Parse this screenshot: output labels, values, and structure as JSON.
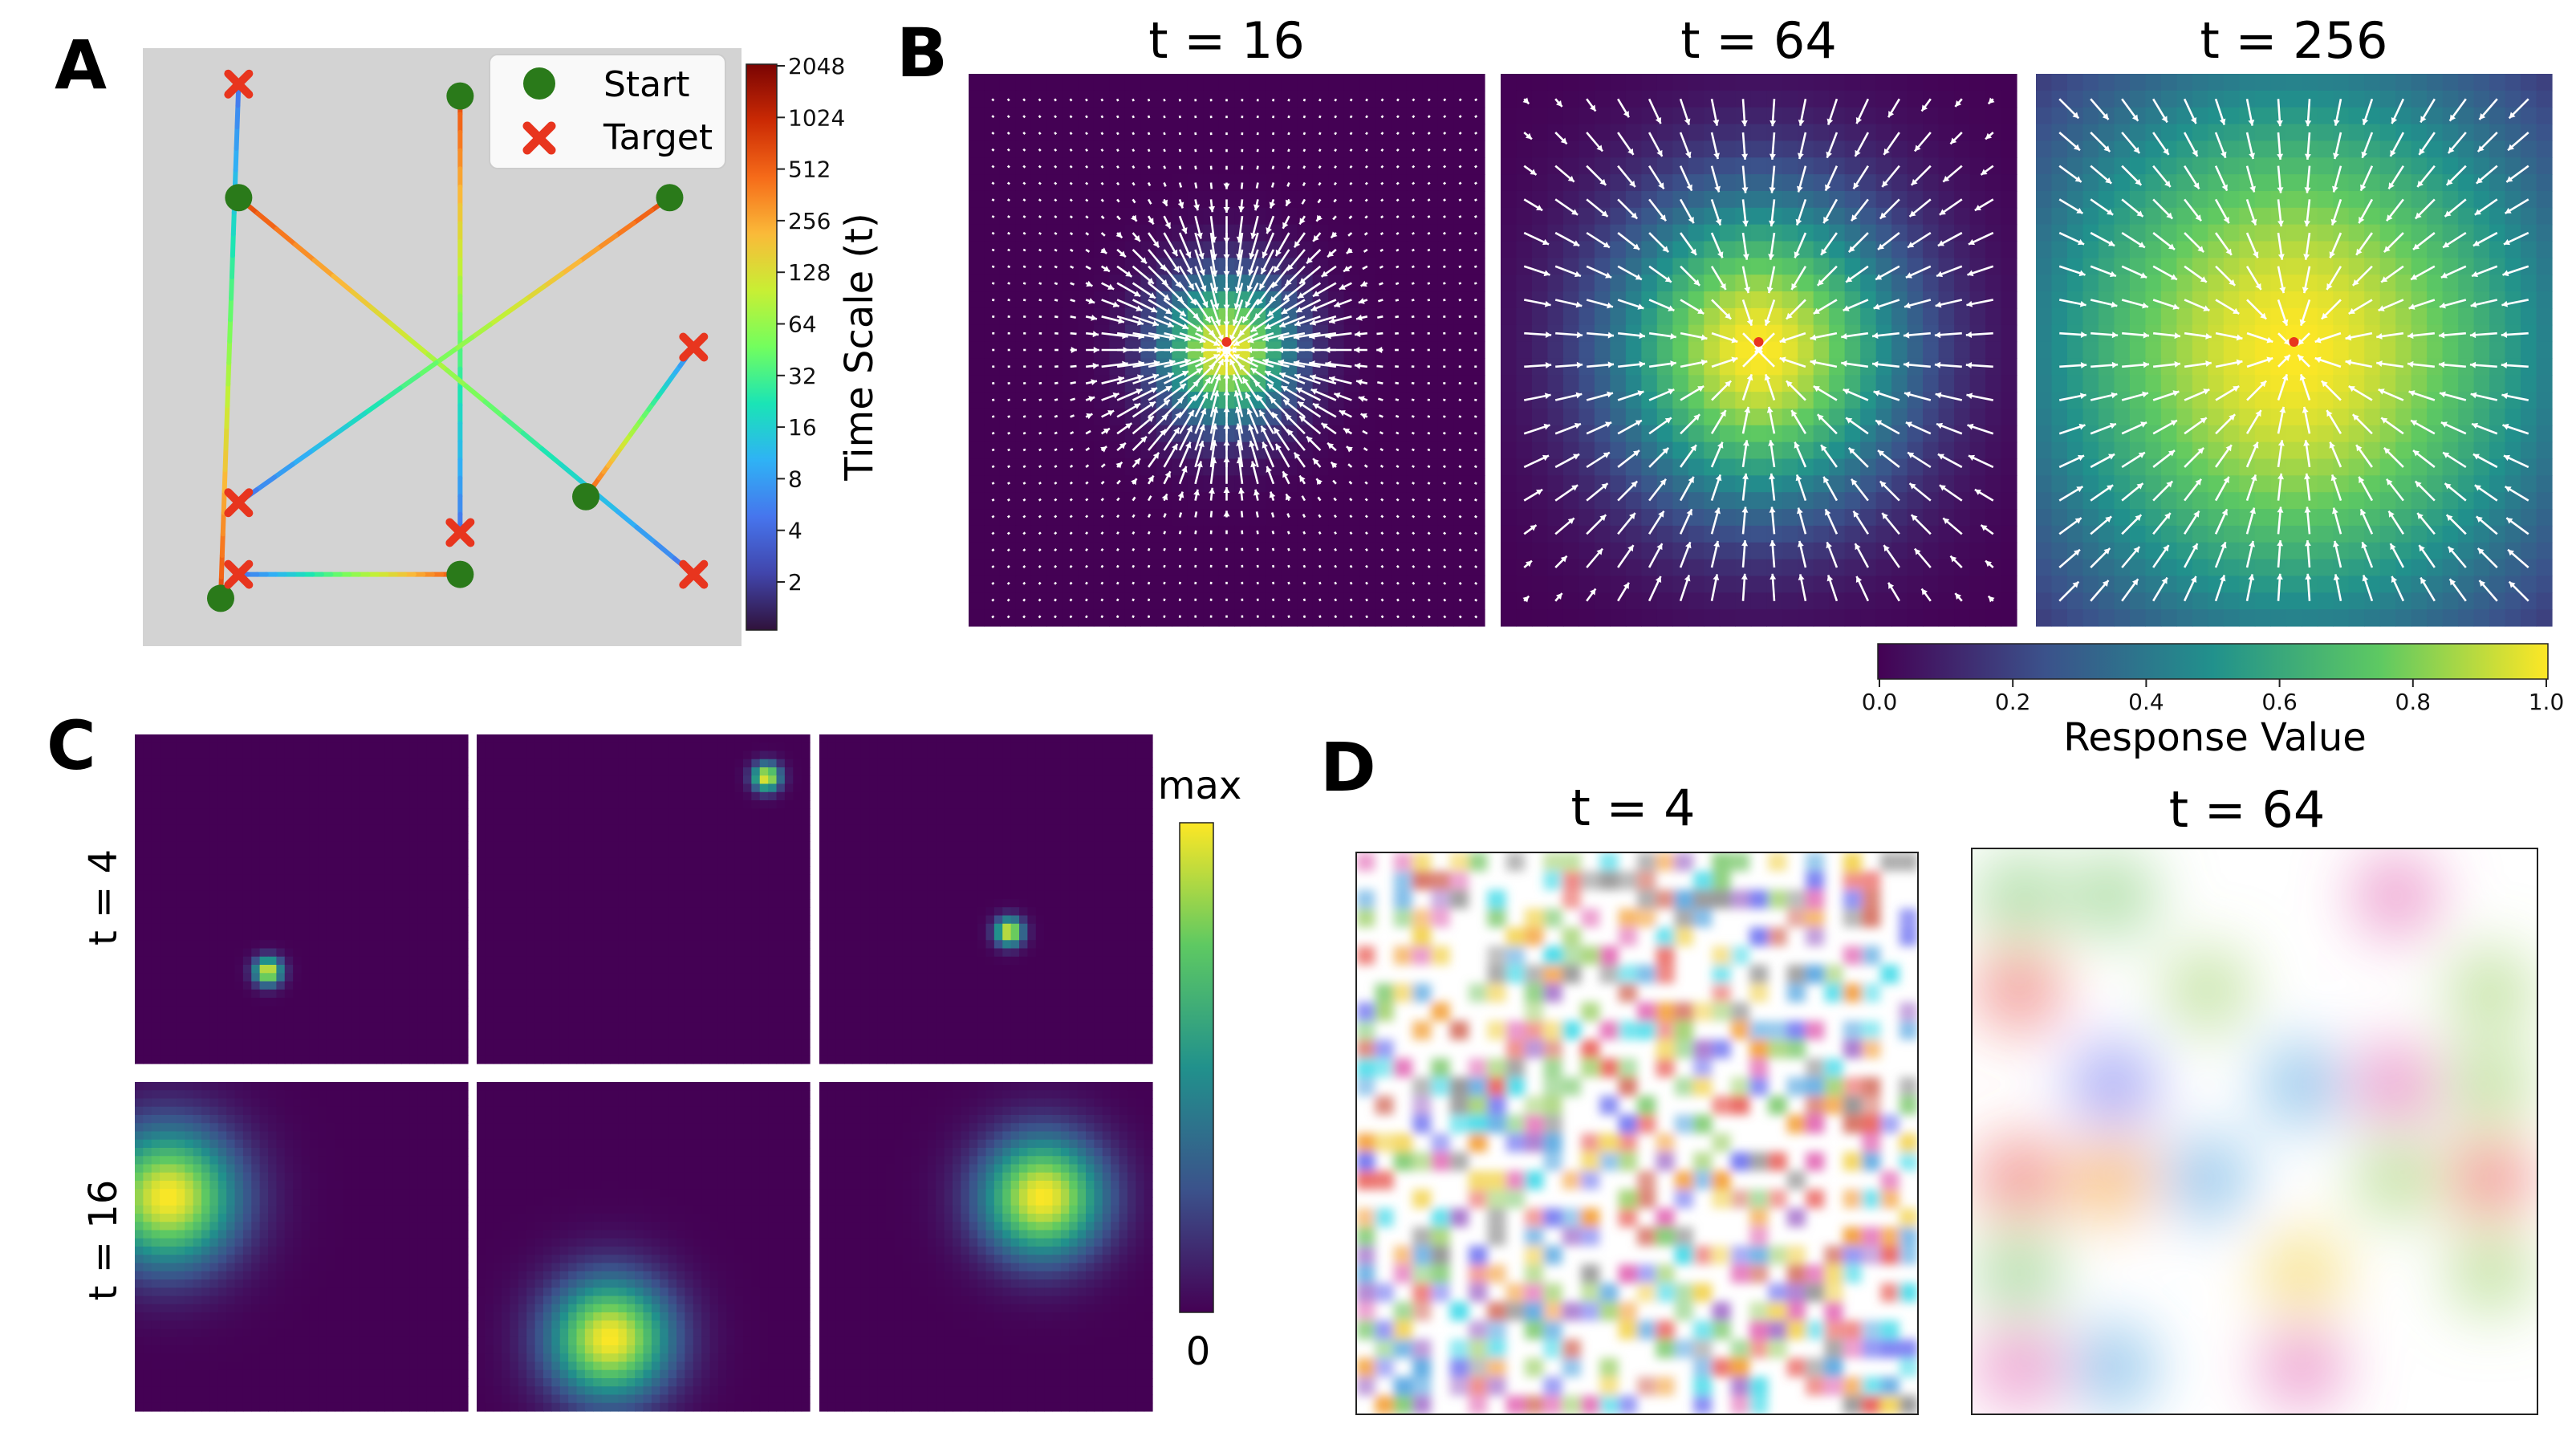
{
  "panels": {
    "A": {
      "letter": "A"
    },
    "B": {
      "letter": "B"
    },
    "C": {
      "letter": "C"
    },
    "D": {
      "letter": "D"
    }
  },
  "chart_data": [
    {
      "panel": "A",
      "type": "line",
      "legend": [
        "Start",
        "Target"
      ],
      "legend_position": "top-right",
      "colorbar": {
        "label": "Time Scale (t)",
        "ticks": [
          "2048",
          "1024",
          "512",
          "256",
          "128",
          "64",
          "32",
          "16",
          "8",
          "4",
          "2"
        ],
        "scale": "log2"
      },
      "paths": [
        {
          "start": [
            0.13,
            0.92
          ],
          "target": [
            0.16,
            0.06
          ]
        },
        {
          "start": [
            0.53,
            0.08
          ],
          "target": [
            0.53,
            0.81
          ]
        },
        {
          "start": [
            0.16,
            0.25
          ],
          "target": [
            0.92,
            0.88
          ]
        },
        {
          "start": [
            0.88,
            0.25
          ],
          "target": [
            0.16,
            0.76
          ]
        },
        {
          "start": [
            0.74,
            0.75
          ],
          "target": [
            0.92,
            0.5
          ]
        },
        {
          "start": [
            0.53,
            0.88
          ],
          "target": [
            0.16,
            0.88
          ]
        }
      ]
    },
    {
      "panel": "B",
      "type": "heatmap",
      "maps": [
        {
          "title": "t = 16",
          "sigma": 0.09
        },
        {
          "title": "t = 64",
          "sigma": 0.2
        },
        {
          "title": "t = 256",
          "sigma": 0.38
        }
      ],
      "colorbar": {
        "label": "Response Value",
        "ticks": [
          "0.0",
          "0.2",
          "0.4",
          "0.6",
          "0.8",
          "1.0"
        ],
        "range": [
          0,
          1
        ]
      }
    },
    {
      "panel": "C",
      "type": "heatmap",
      "row_labels": [
        "t = 4",
        "t = 16"
      ],
      "colorbar": {
        "top": "max",
        "bottom": "0"
      },
      "blobs": [
        [
          {
            "x": 0.4,
            "y": 0.72,
            "r": 0.05
          },
          {
            "x": 0.87,
            "y": 0.13,
            "r": 0.05
          },
          {
            "x": 0.57,
            "y": 0.6,
            "r": 0.05
          }
        ],
        [
          {
            "x": 0.1,
            "y": 0.35,
            "r": 0.25
          },
          {
            "x": 0.4,
            "y": 0.78,
            "r": 0.22
          },
          {
            "x": 0.67,
            "y": 0.35,
            "r": 0.22
          }
        ]
      ]
    },
    {
      "panel": "D",
      "type": "heatmap",
      "maps": [
        {
          "title": "t = 4"
        },
        {
          "title": "t = 64"
        }
      ]
    }
  ]
}
